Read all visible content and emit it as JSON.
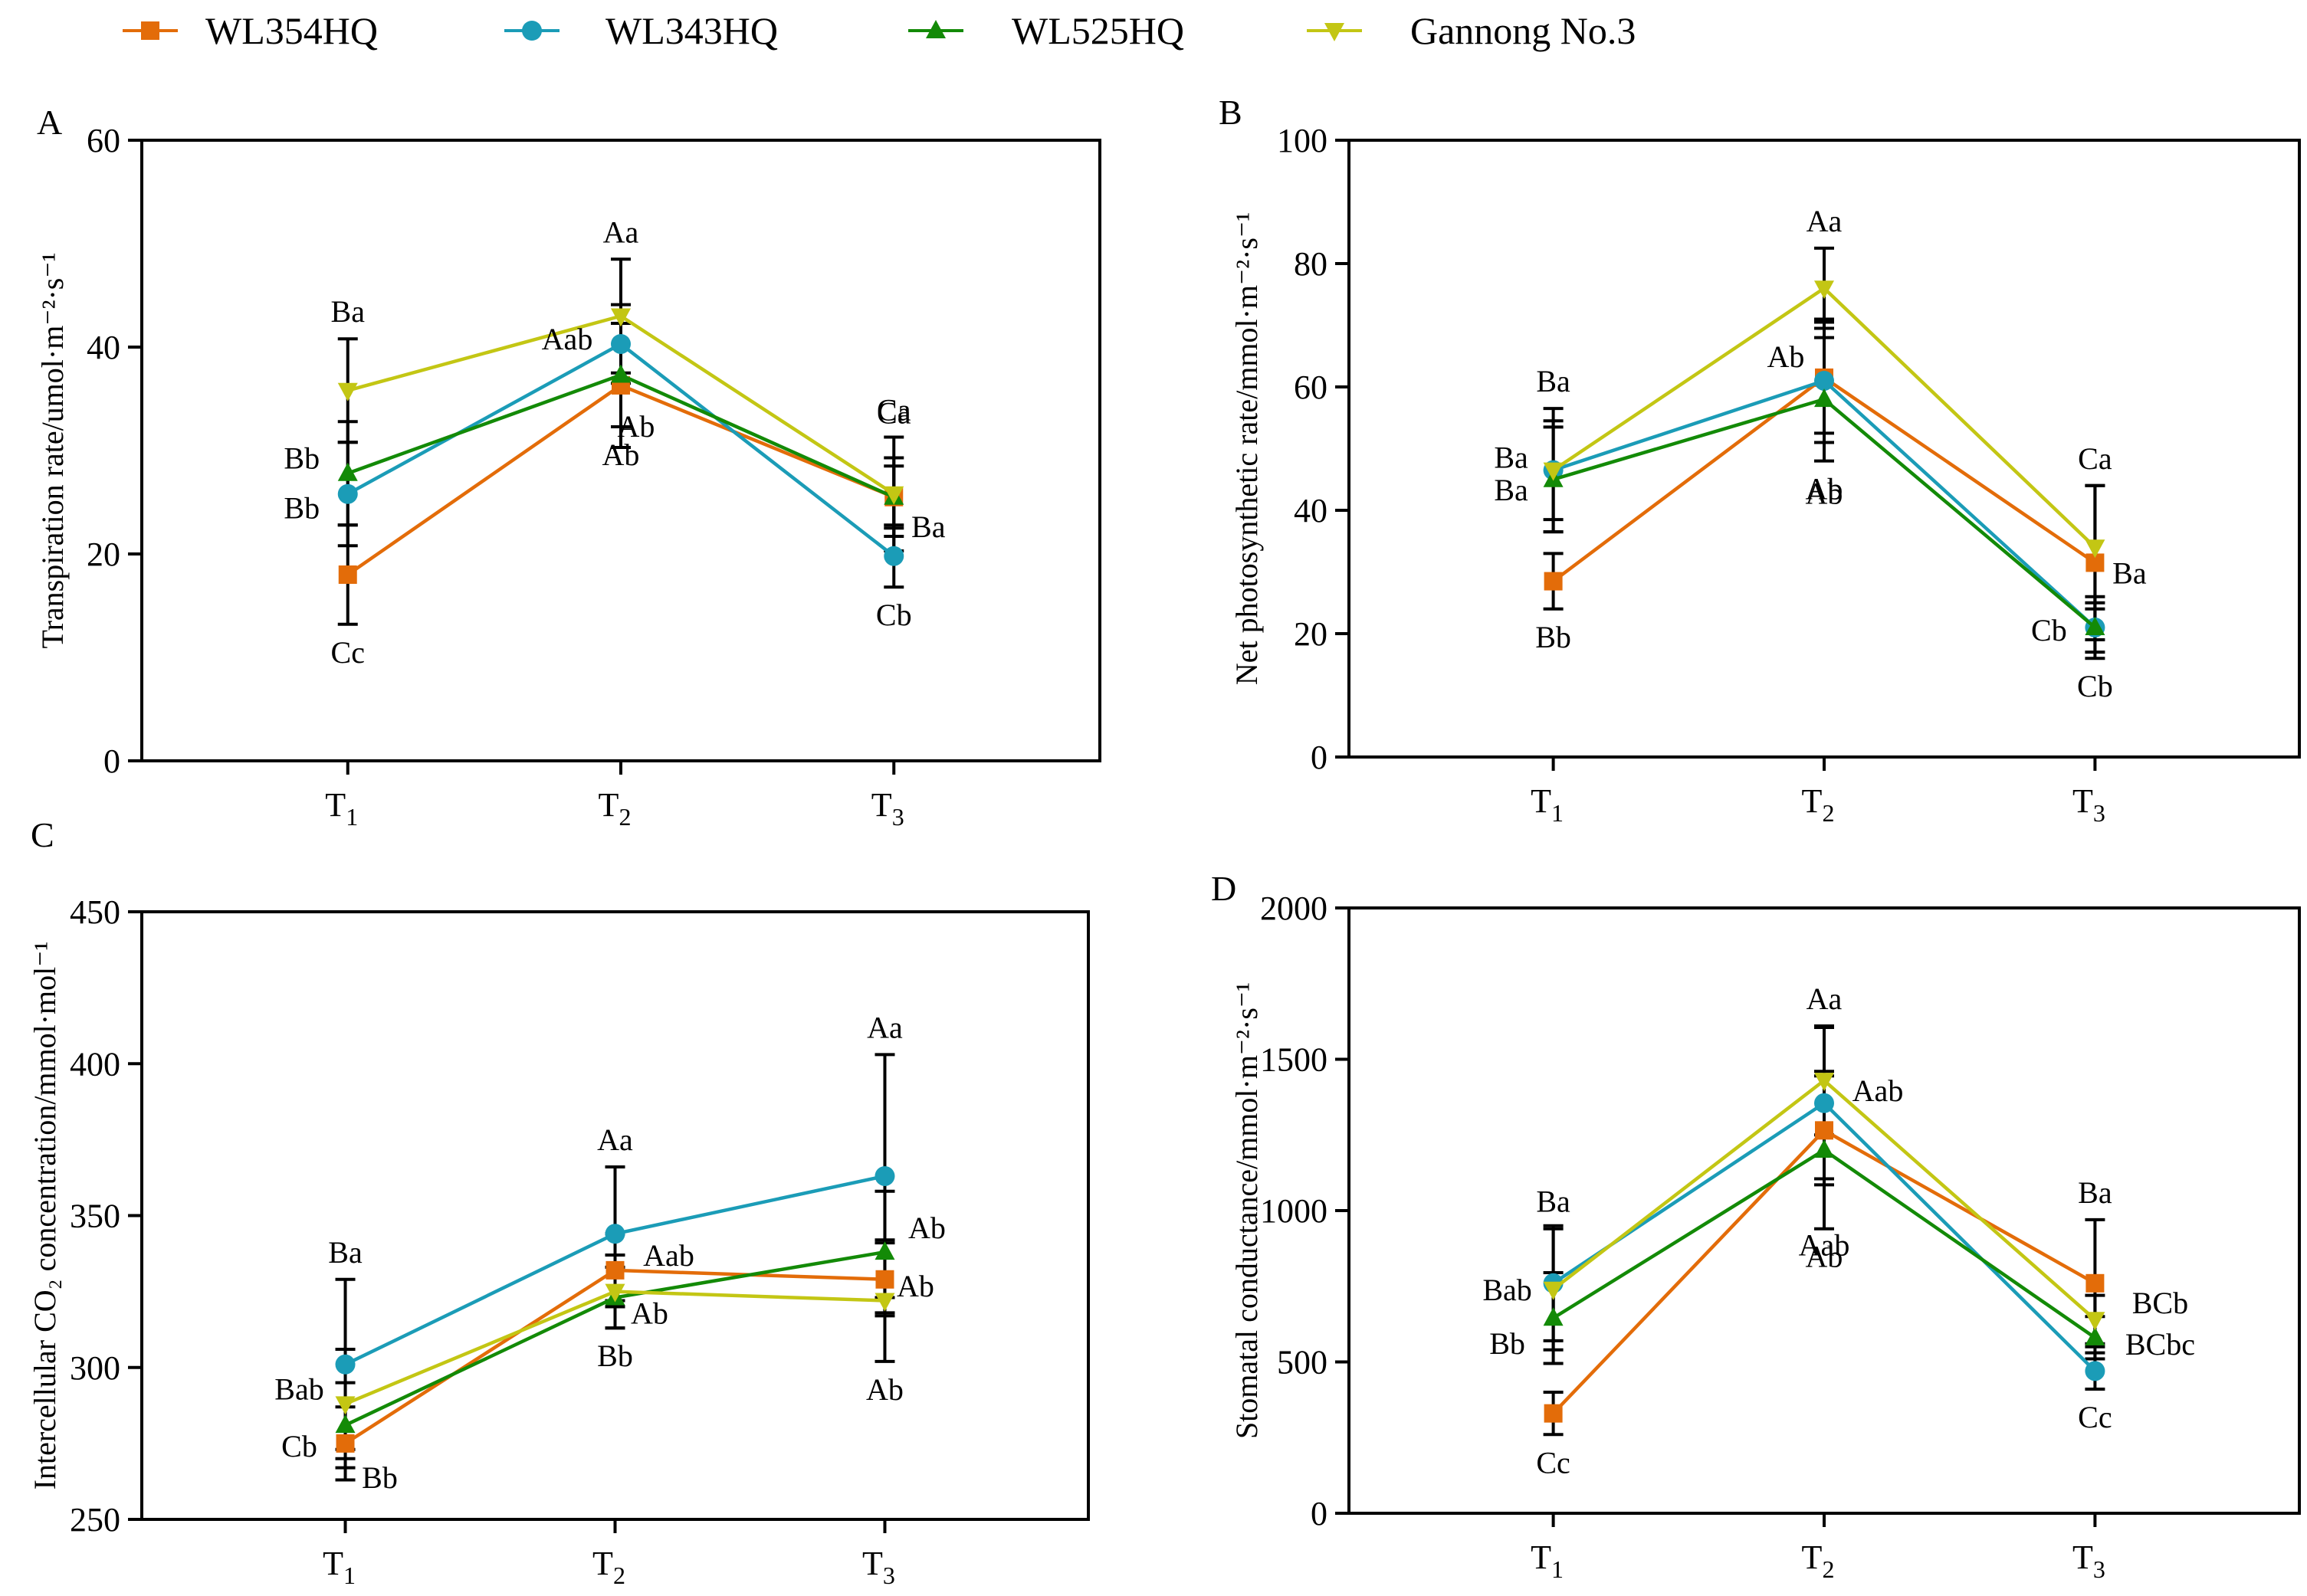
{
  "legend": [
    {
      "name": "WL354HQ",
      "color": "#E36C09",
      "marker": "square"
    },
    {
      "name": "WL343HQ",
      "color": "#1B9CB7",
      "marker": "circle"
    },
    {
      "name": "WL525HQ",
      "color": "#138A07",
      "marker": "triangle-up"
    },
    {
      "name": "Gannong No.3",
      "color": "#C3C614",
      "marker": "triangle-down"
    }
  ],
  "chart_data": [
    {
      "panel": "A",
      "type": "line",
      "title": "",
      "ylabel": "Transpiration rate/umol·m⁻²·s⁻¹",
      "xlabel": "",
      "categories": [
        "T1",
        "T2",
        "T3"
      ],
      "ylim": [
        0,
        60
      ],
      "yticks": [
        0,
        20,
        40,
        60
      ],
      "series": [
        {
          "name": "WL354HQ",
          "values": [
            18,
            36.3,
            25.5
          ],
          "errors": [
            4.8,
            6.0,
            3.8
          ],
          "letters": [
            "Cc",
            "Ab",
            "Ca"
          ]
        },
        {
          "name": "WL343HQ",
          "values": [
            25.8,
            40.3,
            19.8
          ],
          "errors": [
            5.0,
            3.8,
            3.0
          ],
          "letters": [
            "Bb",
            "Aab",
            "Cb"
          ]
        },
        {
          "name": "WL525HQ",
          "values": [
            27.8,
            37.3,
            25.5
          ],
          "errors": [
            5.0,
            5.0,
            3.0
          ],
          "letters": [
            "Bb",
            "Ab",
            "Ba"
          ]
        },
        {
          "name": "Gannong No.3",
          "values": [
            35.8,
            43.0,
            25.8
          ],
          "errors": [
            5.0,
            5.5,
            5.5
          ],
          "letters": [
            "Ba",
            "Aa",
            "Ca"
          ]
        }
      ]
    },
    {
      "panel": "B",
      "type": "line",
      "title": "",
      "ylabel": "Net photosynthetic rate/mmol·m⁻²·s⁻¹",
      "xlabel": "",
      "categories": [
        "T1",
        "T2",
        "T3"
      ],
      "ylim": [
        0,
        100
      ],
      "yticks": [
        0,
        20,
        40,
        60,
        80,
        100
      ],
      "series": [
        {
          "name": "WL354HQ",
          "values": [
            28.5,
            61.5,
            31.5
          ],
          "errors": [
            4.5,
            9.0,
            12.5
          ],
          "letters": [
            "Bb",
            "Ab",
            "Ba"
          ]
        },
        {
          "name": "WL343HQ",
          "values": [
            46.5,
            61.0,
            21.0
          ],
          "errors": [
            8.0,
            10.0,
            4.0
          ],
          "letters": [
            "Ba",
            "Ab",
            "Cb"
          ]
        },
        {
          "name": "WL525HQ",
          "values": [
            45.0,
            58.0,
            21.0
          ],
          "errors": [
            8.5,
            10.0,
            5.0
          ],
          "letters": [
            "Ba",
            "Ab",
            "Cb"
          ]
        },
        {
          "name": "Gannong No.3",
          "values": [
            46.5,
            76.0,
            34.0
          ],
          "errors": [
            10.0,
            6.5,
            10.0
          ],
          "letters": [
            "Ba",
            "Aa",
            "Ca"
          ]
        }
      ]
    },
    {
      "panel": "C",
      "type": "line",
      "title": "",
      "ylabel": "Intercellular CO₂ concentration/mmol·mol⁻¹",
      "xlabel": "",
      "categories": [
        "T1",
        "T2",
        "T3"
      ],
      "ylim": [
        250,
        450
      ],
      "yticks": [
        250,
        300,
        350,
        400,
        450
      ],
      "series": [
        {
          "name": "WL354HQ",
          "values": [
            275,
            332,
            329
          ],
          "errors": [
            12,
            12,
            12
          ],
          "letters": [
            "Cb",
            "Aab",
            "Ab"
          ]
        },
        {
          "name": "WL343HQ",
          "values": [
            301,
            344,
            363
          ],
          "errors": [
            28,
            22,
            40
          ],
          "letters": [
            "Ba",
            "Aa",
            "Aa"
          ]
        },
        {
          "name": "WL525HQ",
          "values": [
            281,
            323,
            338
          ],
          "errors": [
            14,
            10,
            20
          ],
          "letters": [
            "Bb",
            "Ab",
            "Ab"
          ]
        },
        {
          "name": "Gannong No.3",
          "values": [
            288,
            325,
            322
          ],
          "errors": [
            18,
            12,
            20
          ],
          "letters": [
            "Bab",
            "Bb",
            "Ab"
          ]
        }
      ]
    },
    {
      "panel": "D",
      "type": "line",
      "title": "",
      "ylabel": "Stomatal conductance/mmol·m⁻²·s⁻¹",
      "xlabel": "",
      "categories": [
        "T1",
        "T2",
        "T3"
      ],
      "ylim": [
        0,
        2000
      ],
      "yticks": [
        0,
        500,
        1000,
        1500,
        2000
      ],
      "series": [
        {
          "name": "WL354HQ",
          "values": [
            330,
            1265,
            760
          ],
          "errors": [
            70,
            180,
            210
          ],
          "letters": [
            "Cc",
            "Aab",
            "Ba"
          ]
        },
        {
          "name": "WL343HQ",
          "values": [
            760,
            1355,
            470
          ],
          "errors": [
            190,
            250,
            60
          ],
          "letters": [
            "Bab",
            "Aab",
            "Cc"
          ]
        },
        {
          "name": "WL525HQ",
          "values": [
            645,
            1200,
            580
          ],
          "errors": [
            150,
            260,
            70
          ],
          "letters": [
            "Bb",
            "Ab",
            "BCbc"
          ]
        },
        {
          "name": "Gannong No.3",
          "values": [
            740,
            1430,
            640
          ],
          "errors": [
            200,
            180,
            80
          ],
          "letters": [
            "Ba",
            "Aa",
            "BCb"
          ]
        }
      ]
    }
  ]
}
